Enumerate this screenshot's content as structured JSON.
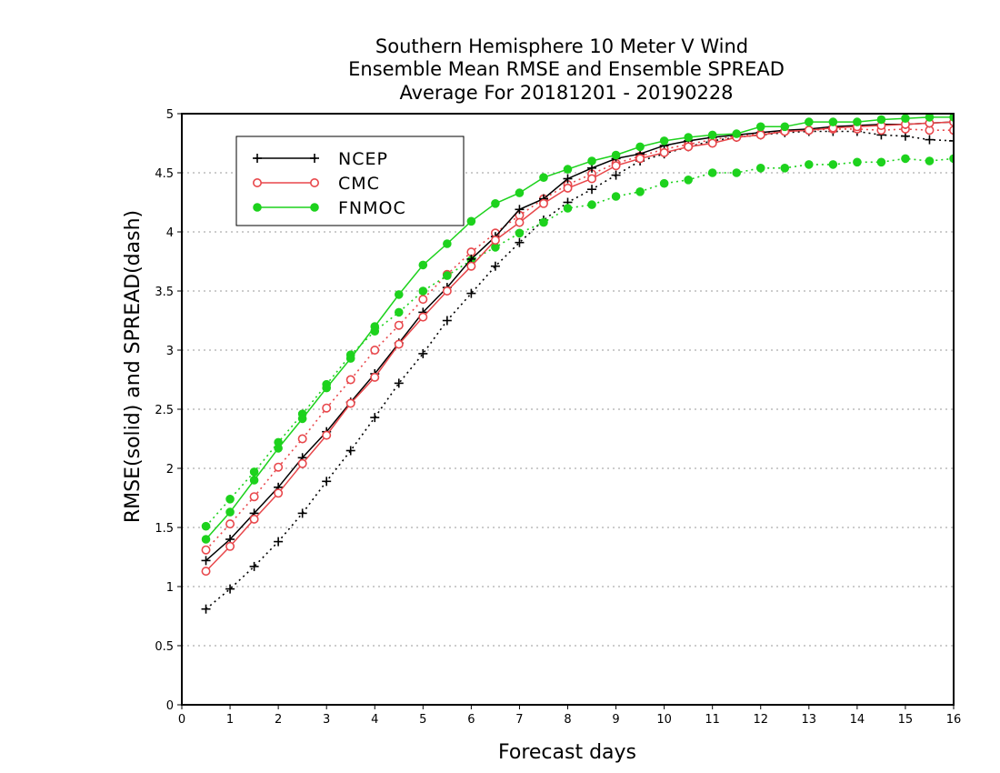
{
  "chart_data": {
    "type": "line",
    "title": [
      "Southern Hemisphere 10 Meter V Wind",
      "Ensemble Mean RMSE and Ensemble SPREAD",
      "Average For 20181201 - 20190228"
    ],
    "xlabel": "Forecast days",
    "ylabel": "RMSE(solid) and SPREAD(dash)",
    "xlim": [
      0,
      16
    ],
    "ylim": [
      0,
      5
    ],
    "xticks": [
      0,
      1,
      2,
      3,
      4,
      5,
      6,
      7,
      8,
      9,
      10,
      11,
      12,
      13,
      14,
      15,
      16
    ],
    "yticks": [
      0,
      0.5,
      1,
      1.5,
      2,
      2.5,
      3,
      3.5,
      4,
      4.5,
      5
    ],
    "grid": "horizontal-dotted",
    "legend_position": "top-left",
    "x": [
      0.5,
      1,
      1.5,
      2,
      2.5,
      3,
      3.5,
      4,
      4.5,
      5,
      5.5,
      6,
      6.5,
      7,
      7.5,
      8,
      8.5,
      9,
      9.5,
      10,
      10.5,
      11,
      11.5,
      12,
      12.5,
      13,
      13.5,
      14,
      14.5,
      15,
      15.5,
      16
    ],
    "series": [
      {
        "name": "NCEP",
        "color": "#000000",
        "marker": "plus",
        "rmse": [
          1.22,
          1.4,
          1.62,
          1.84,
          2.09,
          2.31,
          2.56,
          2.8,
          3.06,
          3.32,
          3.53,
          3.77,
          3.96,
          4.19,
          4.28,
          4.45,
          4.54,
          4.62,
          4.66,
          4.73,
          4.77,
          4.8,
          4.82,
          4.84,
          4.86,
          4.87,
          4.89,
          4.9,
          4.91,
          4.91,
          4.92,
          4.93
        ],
        "spread": [
          0.81,
          0.98,
          1.17,
          1.38,
          1.62,
          1.89,
          2.15,
          2.43,
          2.72,
          2.97,
          3.25,
          3.48,
          3.71,
          3.91,
          4.1,
          4.25,
          4.36,
          4.48,
          4.6,
          4.66,
          4.72,
          4.77,
          4.8,
          4.82,
          4.84,
          4.85,
          4.85,
          4.85,
          4.82,
          4.81,
          4.78,
          4.77
        ]
      },
      {
        "name": "CMC",
        "color": "#e8474b",
        "marker": "open-circle",
        "rmse": [
          1.13,
          1.34,
          1.57,
          1.79,
          2.04,
          2.28,
          2.55,
          2.77,
          3.05,
          3.28,
          3.5,
          3.71,
          3.93,
          4.08,
          4.24,
          4.37,
          4.45,
          4.56,
          4.62,
          4.67,
          4.72,
          4.75,
          4.8,
          4.82,
          4.85,
          4.86,
          4.88,
          4.89,
          4.9,
          4.91,
          4.92,
          4.93
        ],
        "spread": [
          1.31,
          1.53,
          1.76,
          2.01,
          2.25,
          2.51,
          2.75,
          3.0,
          3.21,
          3.43,
          3.64,
          3.83,
          3.99,
          4.14,
          4.28,
          4.4,
          4.49,
          4.58,
          4.64,
          4.7,
          4.74,
          4.78,
          4.81,
          4.83,
          4.85,
          4.86,
          4.87,
          4.87,
          4.86,
          4.87,
          4.86,
          4.86
        ]
      },
      {
        "name": "FNMOC",
        "color": "#1dd21d",
        "marker": "filled-circle",
        "rmse": [
          1.4,
          1.63,
          1.9,
          2.17,
          2.42,
          2.68,
          2.93,
          3.2,
          3.47,
          3.72,
          3.9,
          4.09,
          4.24,
          4.33,
          4.46,
          4.53,
          4.6,
          4.65,
          4.72,
          4.77,
          4.8,
          4.82,
          4.83,
          4.89,
          4.89,
          4.93,
          4.93,
          4.93,
          4.95,
          4.96,
          4.97,
          4.97
        ],
        "spread": [
          1.51,
          1.74,
          1.97,
          2.22,
          2.46,
          2.71,
          2.96,
          3.16,
          3.32,
          3.5,
          3.63,
          3.76,
          3.87,
          3.99,
          4.08,
          4.2,
          4.23,
          4.3,
          4.34,
          4.41,
          4.44,
          4.5,
          4.5,
          4.54,
          4.54,
          4.57,
          4.57,
          4.59,
          4.59,
          4.62,
          4.6,
          4.62
        ]
      }
    ]
  }
}
